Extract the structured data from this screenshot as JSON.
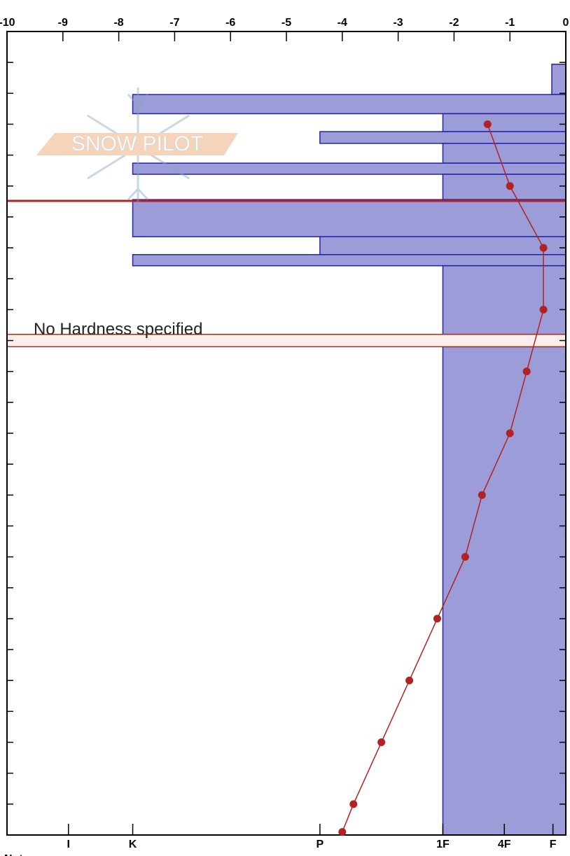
{
  "chart_data": {
    "type": "snow-profile",
    "xlim": [
      -10,
      0
    ],
    "xticks": [
      -10,
      -9,
      -8,
      -7,
      -6,
      -5,
      -4,
      -3,
      -2,
      -1,
      0
    ],
    "ylim": [
      0,
      130
    ],
    "yticks": [
      0,
      5,
      10,
      15,
      20,
      25,
      30,
      35,
      40,
      45,
      50,
      55,
      60,
      65,
      70,
      75,
      80,
      85,
      90,
      95,
      100,
      105,
      110,
      115,
      120,
      125,
      130
    ],
    "hardness_lim": [
      0,
      10
    ],
    "hardness_ticks": [
      {
        "value": 8.9,
        "label": "I"
      },
      {
        "value": 7.75,
        "label": "K"
      },
      {
        "value": 4.4,
        "label": "P"
      },
      {
        "value": 2.2,
        "label": "1F"
      },
      {
        "value": 1.1,
        "label": "4F"
      },
      {
        "value": 0.23,
        "label": "F"
      }
    ],
    "layer_color": "#9c9cd8",
    "layer_edge": "#2222aa",
    "layers": [
      {
        "top": 5.3,
        "bottom": 10.2,
        "hardness": 0.25
      },
      {
        "top": 10.2,
        "bottom": 13.3,
        "hardness": 7.75
      },
      {
        "top": 13.3,
        "bottom": 16.2,
        "hardness": 2.2
      },
      {
        "top": 16.2,
        "bottom": 18.1,
        "hardness": 4.4
      },
      {
        "top": 18.1,
        "bottom": 21.3,
        "hardness": 2.2
      },
      {
        "top": 21.3,
        "bottom": 23.1,
        "hardness": 7.75
      },
      {
        "top": 23.1,
        "bottom": 27.2,
        "hardness": 2.2
      },
      {
        "top": 27.2,
        "bottom": 33.2,
        "hardness": 7.75
      },
      {
        "top": 33.2,
        "bottom": 36.1,
        "hardness": 4.4
      },
      {
        "top": 36.1,
        "bottom": 37.9,
        "hardness": 7.75
      },
      {
        "top": 37.9,
        "bottom": 49,
        "hardness": 2.2
      },
      {
        "top": 51,
        "bottom": 130,
        "hardness": 2.2
      }
    ],
    "no_hardness": {
      "top": 49,
      "bottom": 51,
      "label": "No Hardness specified"
    },
    "marker_depth": 27.4,
    "marker_color": "#b22222",
    "temperature": {
      "color": "#b22222",
      "depth": [
        15,
        25,
        35,
        45,
        55,
        65,
        75,
        85,
        95,
        105,
        115,
        125,
        129.5
      ],
      "values": [
        -1.4,
        -1.0,
        -0.4,
        -0.4,
        -0.7,
        -1.0,
        -1.5,
        -1.8,
        -2.3,
        -2.8,
        -3.3,
        -3.8,
        -4.0
      ]
    },
    "watermark": "SNOW PILOT",
    "footer": "Not"
  }
}
